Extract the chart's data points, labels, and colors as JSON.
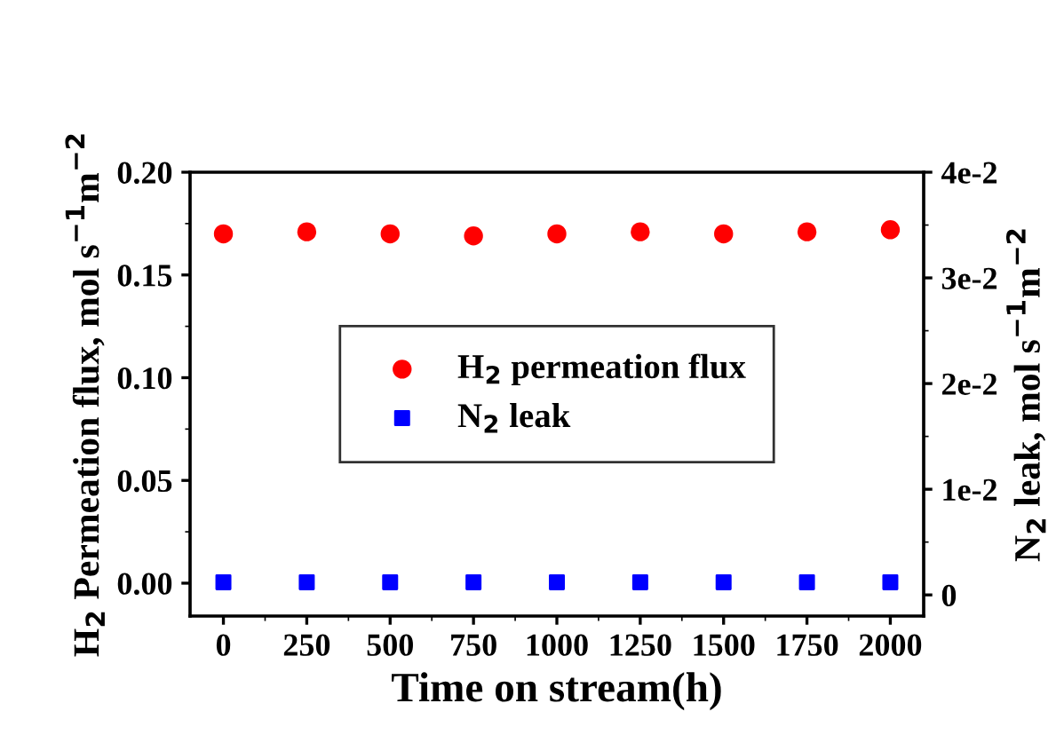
{
  "chart_data": {
    "type": "scatter",
    "xlabel": "Time on stream(h)",
    "ylabel": "H$_{2}$ Permeation flux, mol s$^{−1}$m$^{−2}$",
    "y2label": "N$_{2}$ leak, mol s$^{−1}$m$^{−2}$",
    "x": [
      0,
      250,
      500,
      750,
      1000,
      1250,
      1500,
      1750,
      2000
    ],
    "series": [
      {
        "name": "H$_{2}$ permeation flux",
        "color": "#ff0000",
        "marker": "circle",
        "values": [
          0.17,
          0.171,
          0.17,
          0.169,
          0.17,
          0.171,
          0.17,
          0.171,
          0.172
        ]
      },
      {
        "name": "N$_{2}$ leak",
        "color": "#0000ff",
        "marker": "square",
        "axis": "y2",
        "values": [
          0.0012,
          0.0012,
          0.0012,
          0.0012,
          0.0012,
          0.0012,
          0.0012,
          0.0012,
          0.0012
        ]
      }
    ],
    "xlim": [
      -100,
      2100
    ],
    "xticks": [
      0,
      250,
      500,
      750,
      1000,
      1250,
      1500,
      1750,
      2000
    ],
    "ylim": [
      -0.016,
      0.2
    ],
    "yticks": [
      {
        "value": 0,
        "label": "0.00"
      },
      {
        "value": 0.05,
        "label": "0.05"
      },
      {
        "value": 0.1,
        "label": "0.10"
      },
      {
        "value": 0.15,
        "label": "0.15"
      },
      {
        "value": 0.2,
        "label": "0.20"
      }
    ],
    "y2lim": [
      -0.002,
      0.04
    ],
    "y2ticks": [
      0,
      {
        "value": 0.01,
        "label": "1e-2"
      },
      {
        "value": 0.02,
        "label": "2e-2"
      },
      {
        "value": 0.03,
        "label": "3e-2"
      },
      {
        "value": 0.04,
        "label": "4e-2"
      }
    ],
    "grid": false,
    "legend": "center"
  }
}
